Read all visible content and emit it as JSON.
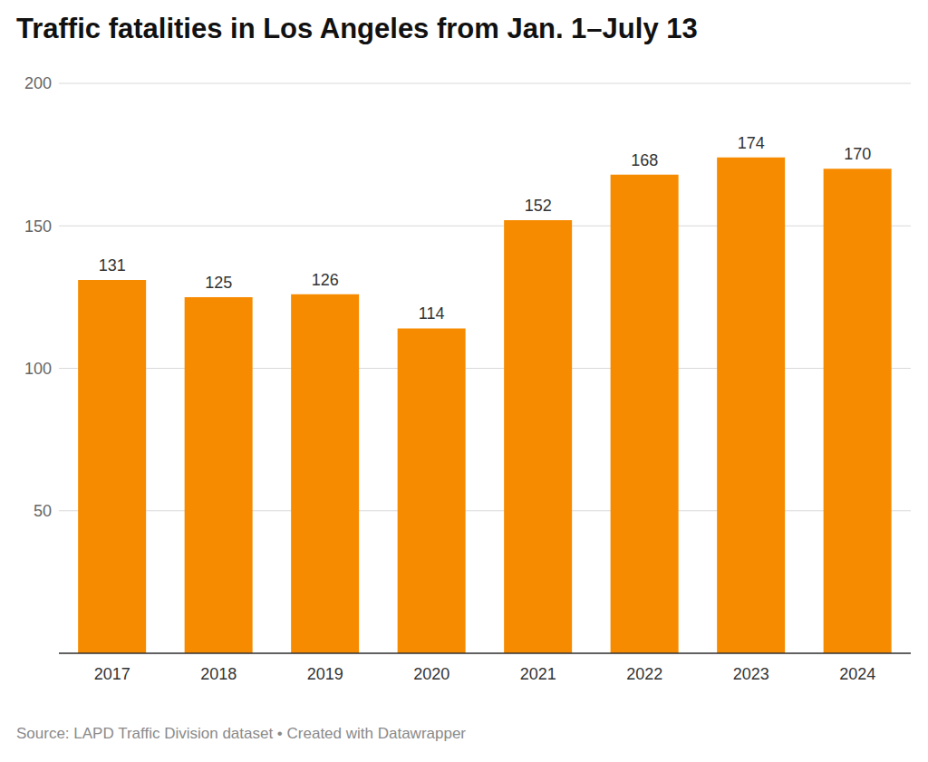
{
  "chart_data": {
    "type": "bar",
    "title": "Traffic fatalities in Los Angeles from Jan. 1–July 13",
    "source": "Source: LAPD Traffic Division dataset • Created with Datawrapper",
    "categories": [
      "2017",
      "2018",
      "2019",
      "2020",
      "2021",
      "2022",
      "2023",
      "2024"
    ],
    "values": [
      131,
      125,
      126,
      114,
      152,
      168,
      174,
      170
    ],
    "color": "#f78b00",
    "ylim": [
      0,
      200
    ],
    "yticks": [
      50,
      100,
      150,
      200
    ],
    "grid": true,
    "data_labels": true
  }
}
